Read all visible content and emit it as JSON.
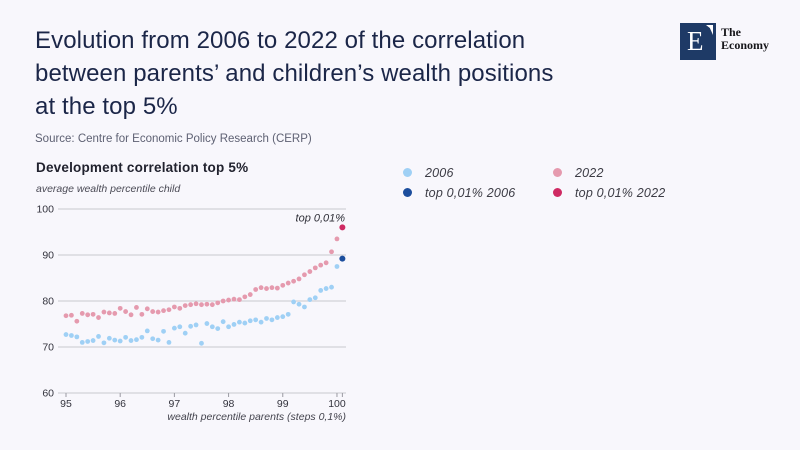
{
  "header": {
    "title_lines": [
      "Evolution from 2006 to 2022 of the correlation",
      "between parents’ and children’s wealth positions",
      "at the top 5%"
    ],
    "source": "Source: Centre for Economic Policy Research (CERP)"
  },
  "logo": {
    "monogram": "E",
    "name_line1": "The",
    "name_line2": "Economy"
  },
  "legend": {
    "items": [
      {
        "label": "2006",
        "color": "#9fd0f5"
      },
      {
        "label": "top 0,01% 2006",
        "color": "#1c4e9d"
      },
      {
        "label": "2022",
        "color": "#e59aae"
      },
      {
        "label": "top 0,01% 2022",
        "color": "#cf2a63"
      }
    ]
  },
  "chart_data": {
    "type": "scatter",
    "title": "Development correlation top 5%",
    "ylabel": "average wealth percentile child",
    "xlabel": "wealth percentile parents (steps 0,1%)",
    "xlim": [
      95,
      100.2
    ],
    "ylim": [
      60,
      100
    ],
    "x_ticks": [
      95,
      96,
      97,
      98,
      99,
      100
    ],
    "extra_x_ticks": [
      100.1
    ],
    "y_ticks": [
      60,
      70,
      80,
      90,
      100
    ],
    "grid": true,
    "legend_position": "top-right",
    "x_start": 95.0,
    "x_step": 0.1,
    "annotation": {
      "text": "top 0,01%",
      "x": 100.15,
      "y": 97.3
    },
    "series": [
      {
        "name": "2006",
        "color": "#9fd0f5",
        "values": [
          72.7,
          72.5,
          72.2,
          71.0,
          71.2,
          71.4,
          72.3,
          70.9,
          71.9,
          71.5,
          71.3,
          72.1,
          71.4,
          71.6,
          72.1,
          73.5,
          71.8,
          71.5,
          73.4,
          71.0,
          74.1,
          74.4,
          73.0,
          74.5,
          74.8,
          70.8,
          75.1,
          74.4,
          74.0,
          75.5,
          74.4,
          74.9,
          75.4,
          75.2,
          75.7,
          75.9,
          75.4,
          76.2,
          75.9,
          76.4,
          76.6,
          77.1,
          79.8,
          79.3,
          78.7,
          80.3,
          80.7,
          82.3,
          82.7,
          83.0,
          87.5
        ]
      },
      {
        "name": "2022",
        "color": "#e59aae",
        "values": [
          76.8,
          76.9,
          75.6,
          77.3,
          77.0,
          77.1,
          76.4,
          77.6,
          77.4,
          77.3,
          78.4,
          77.7,
          77.0,
          78.6,
          77.1,
          78.3,
          77.7,
          77.6,
          77.9,
          78.1,
          78.7,
          78.4,
          79.0,
          79.2,
          79.4,
          79.2,
          79.3,
          79.2,
          79.6,
          80.0,
          80.2,
          80.4,
          80.3,
          80.9,
          81.4,
          82.5,
          82.9,
          82.7,
          82.9,
          82.8,
          83.4,
          83.9,
          84.3,
          84.8,
          85.7,
          86.4,
          87.2,
          87.8,
          88.3,
          90.7,
          93.5
        ]
      },
      {
        "name": "top 0,01% 2006",
        "color": "#1c4e9d",
        "points": [
          {
            "x": 100.1,
            "y": 89.2
          }
        ]
      },
      {
        "name": "top 0,01% 2022",
        "color": "#cf2a63",
        "points": [
          {
            "x": 100.1,
            "y": 96.0
          }
        ]
      }
    ]
  }
}
